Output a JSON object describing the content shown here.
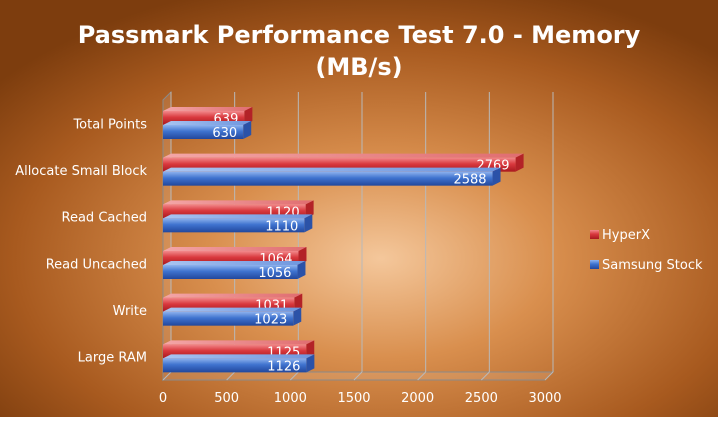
{
  "chart_data": {
    "type": "bar",
    "orientation": "horizontal",
    "title_line1": "Passmark Performance Test 7.0 - Memory",
    "title_line2": "(MB/s)",
    "categories": [
      "Total Points",
      "Allocate Small Block",
      "Read Cached",
      "Read Uncached",
      "Write",
      "Large RAM"
    ],
    "series": [
      {
        "name": "HyperX",
        "color": "#d23a3f",
        "values": [
          639,
          2769,
          1120,
          1064,
          1031,
          1125
        ]
      },
      {
        "name": "Samsung Stock",
        "color": "#3a6fc9",
        "values": [
          630,
          2588,
          1110,
          1056,
          1023,
          1126
        ]
      }
    ],
    "xlim": [
      0,
      3000
    ],
    "xticks": [
      0,
      500,
      1000,
      1500,
      2000,
      2500,
      3000
    ],
    "grid": true,
    "legend": "right",
    "data_labels": true
  }
}
